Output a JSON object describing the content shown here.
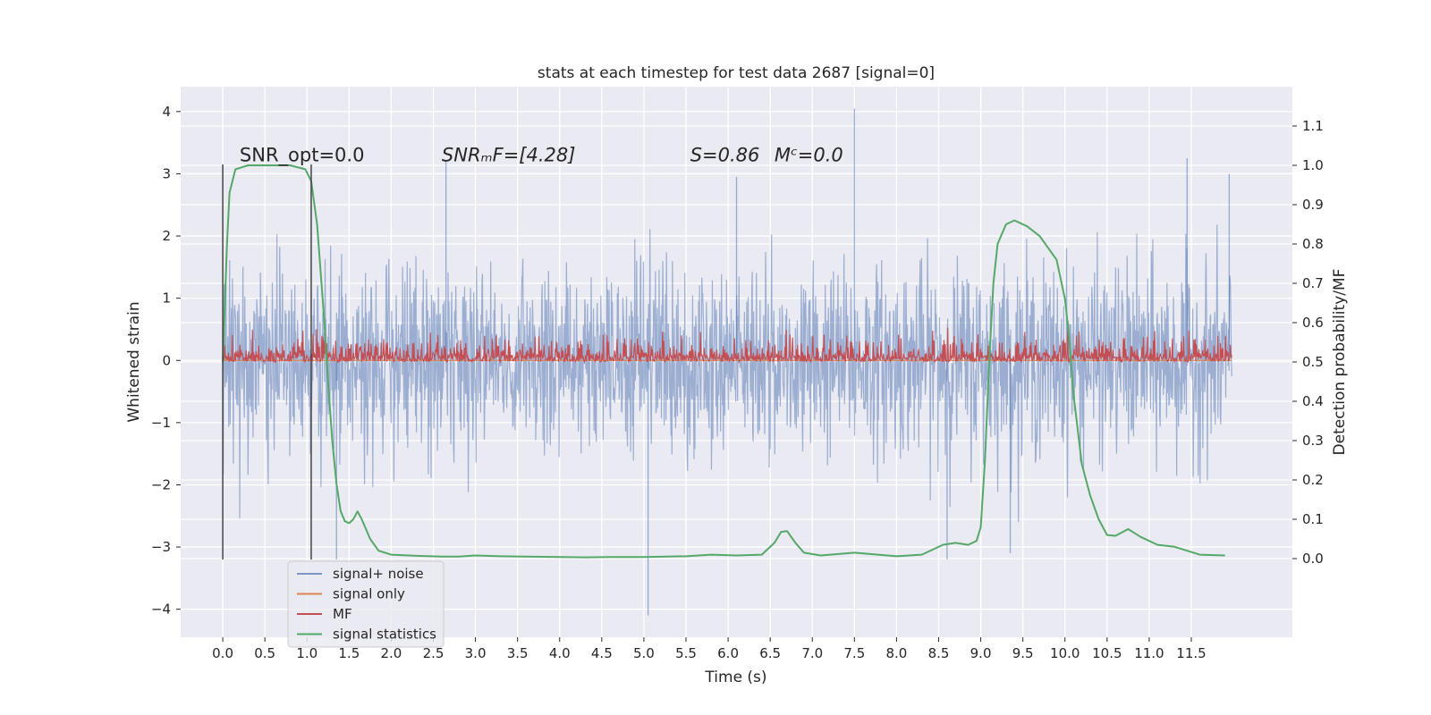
{
  "chart_data": {
    "type": "line",
    "title": "stats at each timestep for test data 2687 [signal=0]",
    "xlabel": "Time (s)",
    "ylabel": "Whitened strain",
    "ylabel_right": "Detection probability/MF",
    "xlim": [
      -0.5,
      12.7
    ],
    "ylim": [
      -4.45,
      4.4
    ],
    "ylim_right": [
      -0.2,
      1.2
    ],
    "x_ticks": [
      0.0,
      0.5,
      1.0,
      1.5,
      2.0,
      2.5,
      3.0,
      3.5,
      4.0,
      4.5,
      5.0,
      5.5,
      6.0,
      6.5,
      7.0,
      7.5,
      8.0,
      8.5,
      9.0,
      9.5,
      10.0,
      10.5,
      11.0,
      11.5
    ],
    "x_tick_labels": [
      "0.0",
      "0.5",
      "1.0",
      "1.5",
      "2.0",
      "2.5",
      "3.0",
      "3.5",
      "4.0",
      "4.5",
      "5.0",
      "5.5",
      "6.0",
      "6.5",
      "7.0",
      "7.5",
      "8.0",
      "8.5",
      "9.0",
      "9.5",
      "10.0",
      "10.5",
      "11.0",
      "11.5"
    ],
    "y_ticks": [
      -4,
      -3,
      -2,
      -1,
      0,
      1,
      2,
      3,
      4
    ],
    "y_tick_labels": [
      "−4",
      "−3",
      "−2",
      "−1",
      "0",
      "1",
      "2",
      "3",
      "4"
    ],
    "y_ticks_right": [
      0.0,
      0.1,
      0.2,
      0.3,
      0.4,
      0.5,
      0.6,
      0.7,
      0.8,
      0.9,
      1.0,
      1.1
    ],
    "y_tick_labels_right": [
      "0.0",
      "0.1",
      "0.2",
      "0.3",
      "0.4",
      "0.5",
      "0.6",
      "0.7",
      "0.8",
      "0.9",
      "1.0",
      "1.1"
    ],
    "grid": true,
    "legend_position": "bottom-left",
    "annotations": [
      {
        "text": "SNR_opt=0.0",
        "x": 0.2,
        "y": 3.2
      },
      {
        "text": "SNRₘF=[4.28]",
        "x": 2.6,
        "y": 3.2
      },
      {
        "text": "S=0.86",
        "x": 5.55,
        "y": 3.2
      },
      {
        "text": "Mᶜ=0.0",
        "x": 6.55,
        "y": 3.2
      }
    ],
    "vlines": [
      {
        "x": 0.0,
        "ymin": -3.2,
        "ymax": 3.15
      },
      {
        "x": 1.05,
        "ymin": -3.2,
        "ymax": 3.15
      }
    ],
    "series": [
      {
        "name": "signal+ noise",
        "color": "#4c72b0",
        "axis": "left",
        "t_range": [
          0.0,
          11.98
        ],
        "noise_std": 0.75,
        "spikes": [
          [
            7.5,
            4.05
          ],
          [
            5.05,
            -4.1
          ],
          [
            11.45,
            3.25
          ],
          [
            9.35,
            -3.1
          ],
          [
            2.65,
            3.2
          ],
          [
            8.6,
            -3.2
          ],
          [
            11.95,
            3.0
          ],
          [
            1.35,
            -3.2
          ],
          [
            6.1,
            2.95
          ]
        ]
      },
      {
        "name": "signal only",
        "color": "#dd8452",
        "axis": "left",
        "t": [
          0.0,
          11.98
        ],
        "values": [
          0.0,
          0.0
        ]
      },
      {
        "name": "MF",
        "color": "#c44e52",
        "axis": "right",
        "t_range": [
          0.0,
          11.98
        ],
        "baseline": 0.5,
        "typical_peak": 0.59,
        "max_peak": 0.64
      },
      {
        "name": "signal statistics",
        "color": "#55a868",
        "axis": "right",
        "t": [
          0.0,
          0.05,
          0.08,
          0.15,
          0.3,
          0.5,
          0.8,
          0.98,
          1.05,
          1.12,
          1.2,
          1.25,
          1.3,
          1.35,
          1.4,
          1.45,
          1.5,
          1.55,
          1.6,
          1.65,
          1.75,
          1.85,
          2.0,
          2.3,
          2.6,
          2.8,
          3.0,
          3.3,
          3.6,
          4.0,
          4.3,
          4.6,
          5.0,
          5.5,
          5.8,
          6.1,
          6.4,
          6.55,
          6.63,
          6.7,
          6.8,
          6.9,
          7.1,
          7.5,
          8.0,
          8.3,
          8.55,
          8.7,
          8.85,
          8.95,
          9.0,
          9.05,
          9.1,
          9.15,
          9.2,
          9.3,
          9.4,
          9.55,
          9.7,
          9.9,
          10.0,
          10.05,
          10.1,
          10.15,
          10.2,
          10.3,
          10.4,
          10.5,
          10.6,
          10.75,
          10.9,
          11.1,
          11.3,
          11.6,
          11.9
        ],
        "values": [
          0.5,
          0.8,
          0.93,
          0.99,
          1.0,
          1.0,
          1.0,
          0.99,
          0.96,
          0.85,
          0.62,
          0.45,
          0.3,
          0.19,
          0.12,
          0.095,
          0.09,
          0.1,
          0.12,
          0.1,
          0.05,
          0.02,
          0.01,
          0.007,
          0.005,
          0.005,
          0.008,
          0.006,
          0.005,
          0.004,
          0.003,
          0.004,
          0.004,
          0.006,
          0.01,
          0.008,
          0.01,
          0.04,
          0.068,
          0.07,
          0.04,
          0.015,
          0.008,
          0.015,
          0.006,
          0.01,
          0.035,
          0.04,
          0.035,
          0.045,
          0.08,
          0.25,
          0.5,
          0.7,
          0.8,
          0.85,
          0.86,
          0.845,
          0.82,
          0.76,
          0.66,
          0.56,
          0.42,
          0.33,
          0.24,
          0.16,
          0.1,
          0.06,
          0.058,
          0.075,
          0.055,
          0.035,
          0.03,
          0.01,
          0.008
        ]
      }
    ]
  }
}
